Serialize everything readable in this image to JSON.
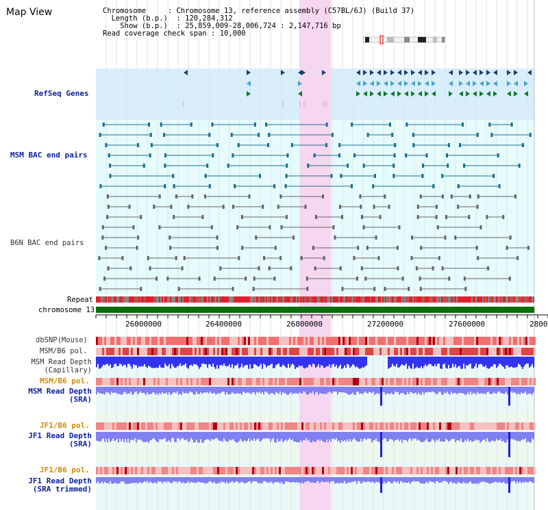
{
  "title": "Map View",
  "info": {
    "line1_label": "Chromosome",
    "line1_value": "Chromosome 13, reference assembly (C57BL/6J) (Build 37)",
    "line2_label": "Length (b.p.)",
    "line2_value": "120,284,312",
    "line3_label": "Show (b.p.)",
    "line3_value": "25,859,009-28,006,724 : 2,147,716 bp",
    "line4_label": "Read coverage check span",
    "line4_value": "10,000"
  },
  "tracks": {
    "refseq": "RefSeq Genes",
    "msm_bac": "MSM BAC end pairs",
    "b6n_bac": "B6N BAC end pairs",
    "repeat": "Repeat",
    "chromosome": "chromosome 13",
    "dbsnp": "dbSNP(Mouse)",
    "msm_b6_pol1": "MSM/B6 pol.",
    "msm_depth_cap_1": "MSM Read Depth",
    "msm_depth_cap_2": "(Capillary)",
    "msm_b6_pol2": "MSM/B6 pol.",
    "msm_depth_sra_1": "MSM Read Depth",
    "msm_depth_sra_2": "(SRA)",
    "jf1_b6_pol1": "JF1/B6 pol.",
    "jf1_depth_sra_1": "JF1 Read Depth",
    "jf1_depth_sra_2": "(SRA)",
    "jf1_b6_pol2": "JF1/B6 pol.",
    "jf1_depth_trim_1": "JF1 Read Depth",
    "jf1_depth_trim_2": "(SRA trimmed)"
  },
  "axis": {
    "ticks": [
      "26000000",
      "26400000",
      "26800000",
      "27200000",
      "27600000",
      "2800"
    ]
  },
  "colors": {
    "refseq_bg": "#d8eefa",
    "bac_bg": "#e6fbfb",
    "highlight": "#f7d6f0",
    "chrom_bar": "#0a6e0a",
    "msm_blue": "#1f4e8a",
    "gene_green": "#0f7a2a",
    "depth_blue": "#3333ee",
    "depth_light": "#8080f0",
    "snp_red": "#e84a4a"
  }
}
